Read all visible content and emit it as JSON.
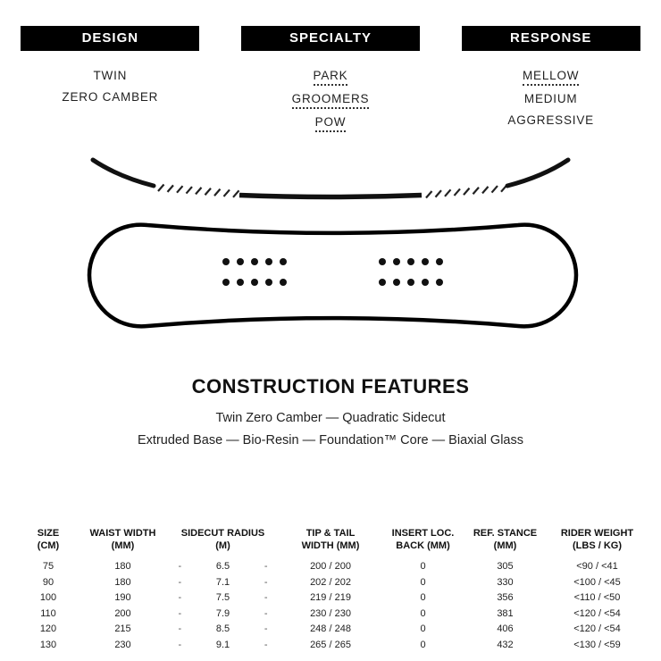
{
  "accent_color": "#000000",
  "attributes": {
    "columns": [
      {
        "title": "DESIGN",
        "items": [
          {
            "label": "TWIN",
            "underlined": false
          },
          {
            "label": "ZERO CAMBER",
            "underlined": false
          }
        ]
      },
      {
        "title": "SPECIALTY",
        "items": [
          {
            "label": "PARK",
            "underlined": true
          },
          {
            "label": "GROOMERS",
            "underlined": true
          },
          {
            "label": "POW",
            "underlined": true
          }
        ]
      },
      {
        "title": "RESPONSE",
        "items": [
          {
            "label": "MELLOW",
            "underlined": true
          },
          {
            "label": "MEDIUM",
            "underlined": false
          },
          {
            "label": "AGGRESSIVE",
            "underlined": false
          }
        ]
      }
    ]
  },
  "diagrams": {
    "camber": "twin-zero-camber-profile",
    "board": "snowboard-top-outline-with-insert-packs"
  },
  "construction": {
    "title": "CONSTRUCTION FEATURES",
    "line1": "Twin Zero Camber — Quadratic Sidecut",
    "line2": "Extruded Base — Bio-Resin — Foundation™ Core — Biaxial Glass"
  },
  "table": {
    "sidecut_dash": "-",
    "columns": [
      {
        "id": "size",
        "line1": "SIZE",
        "line2": "(CM)"
      },
      {
        "id": "waist",
        "line1": "WAIST WIDTH",
        "line2": "(MM)"
      },
      {
        "id": "sidecut",
        "line1": "SIDECUT RADIUS",
        "line2": "(M)"
      },
      {
        "id": "tip_tail",
        "line1": "TIP & TAIL",
        "line2": "WIDTH (MM)"
      },
      {
        "id": "insert_back",
        "line1": "INSERT LOC.",
        "line2": "BACK (MM)"
      },
      {
        "id": "stance",
        "line1": "REF. STANCE",
        "line2": "(MM)"
      },
      {
        "id": "weight",
        "line1": "RIDER WEIGHT",
        "line2": "(LBS / KG)"
      }
    ],
    "rows": [
      {
        "size": "75",
        "waist": "180",
        "sidecut": "6.5",
        "tip_tail": "200 / 200",
        "insert_back": "0",
        "stance": "305",
        "weight": "<90 / <41"
      },
      {
        "size": "90",
        "waist": "180",
        "sidecut": "7.1",
        "tip_tail": "202 / 202",
        "insert_back": "0",
        "stance": "330",
        "weight": "<100 / <45"
      },
      {
        "size": "100",
        "waist": "190",
        "sidecut": "7.5",
        "tip_tail": "219 / 219",
        "insert_back": "0",
        "stance": "356",
        "weight": "<110 / <50"
      },
      {
        "size": "110",
        "waist": "200",
        "sidecut": "7.9",
        "tip_tail": "230 / 230",
        "insert_back": "0",
        "stance": "381",
        "weight": "<120 / <54"
      },
      {
        "size": "120",
        "waist": "215",
        "sidecut": "8.5",
        "tip_tail": "248 / 248",
        "insert_back": "0",
        "stance": "406",
        "weight": "<120 / <54"
      },
      {
        "size": "130",
        "waist": "230",
        "sidecut": "9.1",
        "tip_tail": "265 / 265",
        "insert_back": "0",
        "stance": "432",
        "weight": "<130 / <59"
      }
    ]
  }
}
